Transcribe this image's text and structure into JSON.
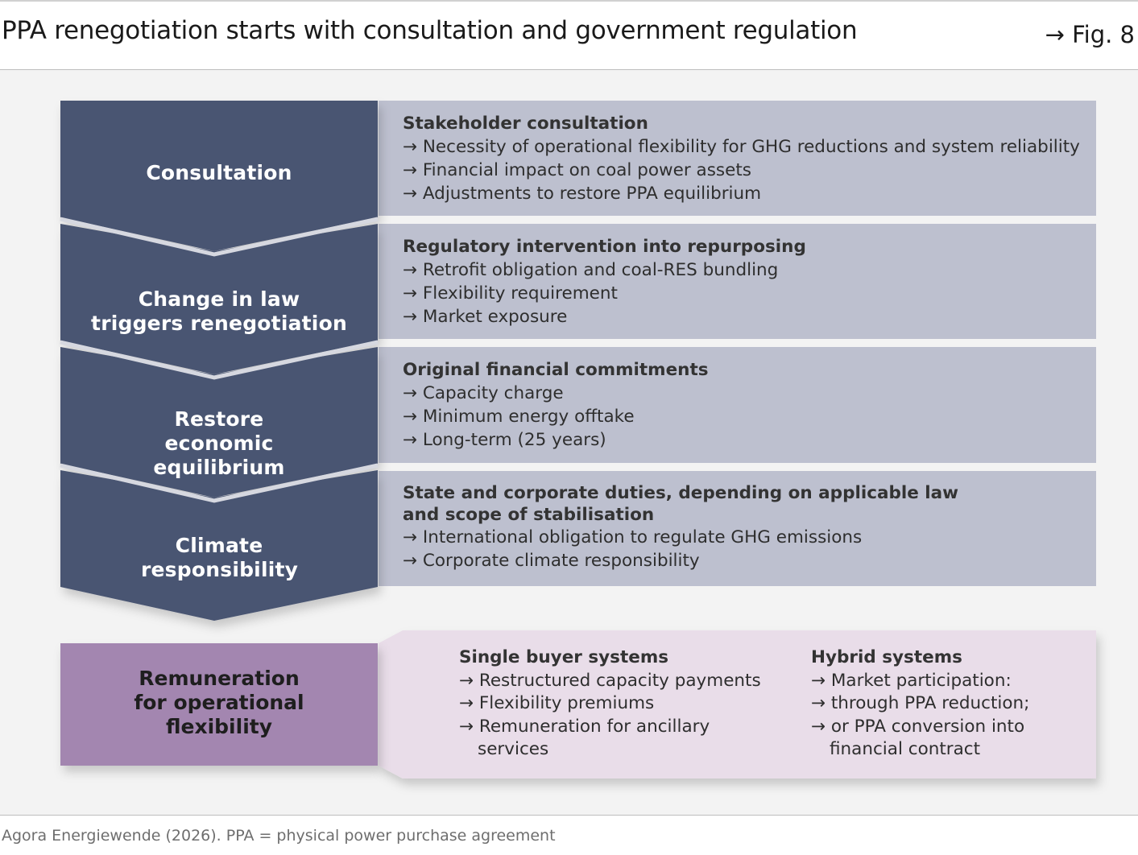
{
  "title": "PPA renegotiation starts with consultation and government regulation",
  "figure": "→ Fig. 8",
  "steps": [
    {
      "label": "Consultation",
      "heading": "Stakeholder consultation",
      "items": [
        "→ Necessity of operational flexibility for GHG reductions and system reliability",
        "→ Financial impact on coal power assets",
        "→ Adjustments to restore PPA equilibrium"
      ]
    },
    {
      "label": "Change in law triggers renegotiation",
      "heading": "Regulatory intervention into repurposing",
      "items": [
        "→ Retrofit obligation and coal-RES bundling",
        "→ Flexibility requirement",
        "→ Market exposure"
      ]
    },
    {
      "label": "Restore economic equilibrium",
      "heading": "Original financial commitments",
      "items": [
        "→ Capacity charge",
        "→ Minimum energy offtake",
        "→ Long-term (25 years)"
      ]
    },
    {
      "label": "Climate responsibility",
      "heading": "State and corporate duties, depending on applicable law and scope of stabilisation",
      "items": [
        "→ International obligation to regulate GHG emissions",
        "→ Corporate climate responsibility"
      ]
    }
  ],
  "remuneration": {
    "label": "Remuneration for operational flexibility",
    "columns": [
      {
        "heading": "Single buyer systems",
        "items": [
          "→ Restructured capacity payments",
          "→ Flexibility premiums",
          "→ Remuneration for ancillary services"
        ]
      },
      {
        "heading": "Hybrid systems",
        "items": [
          "→ Market participation:",
          "→ through PPA reduction;",
          "→ or PPA conversion into financial contract"
        ]
      }
    ]
  },
  "source": "Agora Energiewende (2026). PPA = physical power purchase agreement",
  "colors": {
    "step_fill": "#4a5572",
    "step_text": "#ffffff",
    "box_fill": "#bdc0cf",
    "remuneration_fill": "#a386b0",
    "remuneration_box_fill": "#e9dde9",
    "panel_bg": "#f3f3f3"
  }
}
